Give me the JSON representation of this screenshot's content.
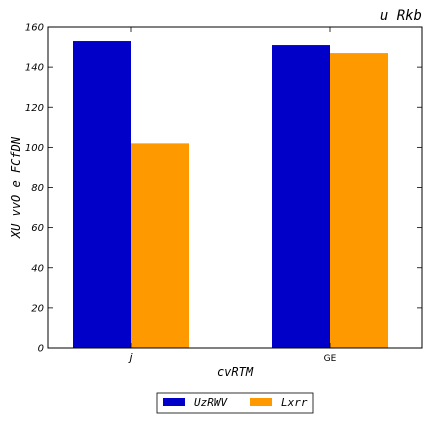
{
  "chart_data": {
    "type": "bar",
    "title": "u Rkb",
    "xlabel": "cvRTM",
    "ylabel": "XU vvO e FCfDN",
    "categories": [
      "j",
      "GE"
    ],
    "series": [
      {
        "name": "UzRWV",
        "values": [
          153,
          151
        ],
        "color": "#0000c8"
      },
      {
        "name": "Lxrr",
        "values": [
          102,
          147
        ],
        "color": "#ff9900"
      }
    ],
    "ylim": [
      0,
      160
    ],
    "yticks": [
      0,
      20,
      40,
      60,
      80,
      100,
      120,
      140,
      160
    ],
    "grid": false,
    "legend": "bottom-center"
  }
}
